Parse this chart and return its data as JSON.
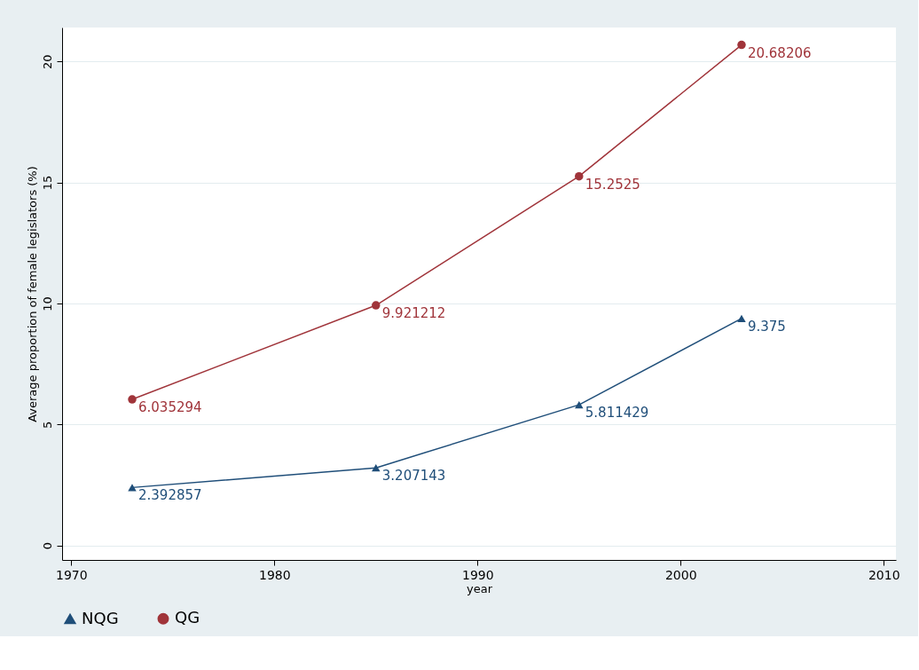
{
  "chart_data": {
    "type": "line",
    "xlabel": "year",
    "ylabel": "Average proportion of female legislators (%)",
    "x": [
      1973,
      1985,
      1995,
      2003
    ],
    "series": [
      {
        "name": "NQG",
        "color": "#1f4e79",
        "marker": "triangle",
        "values": [
          2.392857,
          3.207143,
          5.811429,
          9.375
        ]
      },
      {
        "name": "QG",
        "color": "#a0343a",
        "marker": "circle",
        "values": [
          6.035294,
          9.921212,
          15.2525,
          20.68206
        ]
      }
    ],
    "xlim": [
      1969.55,
      2010.6
    ],
    "xticks": [
      1970,
      1980,
      1990,
      2000,
      2010
    ],
    "ylim": [
      -0.6,
      21.4
    ],
    "yticks": [
      0,
      5,
      10,
      15,
      20
    ],
    "grid": "y",
    "legend": "bottom",
    "data_labels": true,
    "line_style": "solid"
  }
}
